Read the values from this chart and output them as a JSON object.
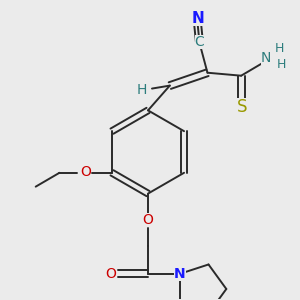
{
  "background_color": "#ebebeb",
  "figsize": [
    3.0,
    3.0
  ],
  "dpi": 100,
  "bond_color": "#2a2a2a",
  "bond_lw": 1.4,
  "colors": {
    "N": "#1a1aff",
    "O": "#cc0000",
    "S": "#999900",
    "C": "#2d7d7d",
    "H": "#2d7d7d",
    "bond": "#2a2a2a"
  }
}
